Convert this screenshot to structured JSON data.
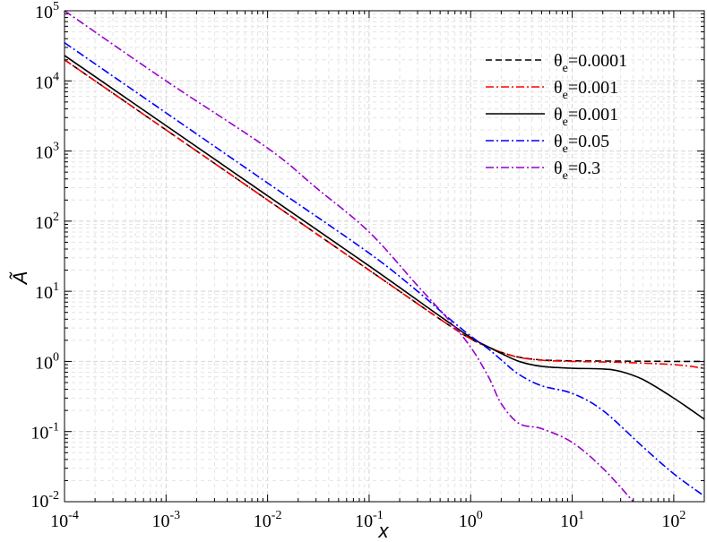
{
  "chart_data": {
    "type": "line",
    "title": "",
    "xlabel": "x",
    "ylabel": "Ã",
    "xscale": "log",
    "yscale": "log",
    "xlim": [
      0.0001,
      200
    ],
    "ylim": [
      0.01,
      100000
    ],
    "grid": true,
    "legend_position": "top-right",
    "x_ticks": [
      {
        "base": "10",
        "exp": "-4"
      },
      {
        "base": "10",
        "exp": "-3"
      },
      {
        "base": "10",
        "exp": "-2"
      },
      {
        "base": "10",
        "exp": "-1"
      },
      {
        "base": "10",
        "exp": "0"
      },
      {
        "base": "10",
        "exp": "1"
      },
      {
        "base": "10",
        "exp": "2"
      }
    ],
    "y_ticks": [
      {
        "base": "10",
        "exp": "-2"
      },
      {
        "base": "10",
        "exp": "-1"
      },
      {
        "base": "10",
        "exp": "0"
      },
      {
        "base": "10",
        "exp": "1"
      },
      {
        "base": "10",
        "exp": "2"
      },
      {
        "base": "10",
        "exp": "3"
      },
      {
        "base": "10",
        "exp": "4"
      },
      {
        "base": "10",
        "exp": "5"
      }
    ],
    "series": [
      {
        "label_main": "θ",
        "label_sub": "e",
        "label_value": "=0.0001",
        "color": "#000000",
        "style": "dashed",
        "x": [
          0.0001,
          0.001,
          0.01,
          0.1,
          0.5,
          1,
          1.5,
          2,
          3,
          5,
          10,
          30,
          100,
          200
        ],
        "y": [
          20000,
          2000,
          200,
          20,
          4.0,
          2.1,
          1.6,
          1.35,
          1.15,
          1.05,
          1.02,
          1.01,
          1.0,
          1.0
        ]
      },
      {
        "label_main": "θ",
        "label_sub": "e",
        "label_value": "=0.001",
        "color": "#ff0000",
        "style": "dashdot",
        "x": [
          0.0001,
          0.001,
          0.01,
          0.1,
          0.5,
          1,
          1.5,
          2,
          3,
          5,
          10,
          30,
          100,
          200
        ],
        "y": [
          20000,
          2000,
          200,
          20,
          4.0,
          2.1,
          1.6,
          1.35,
          1.14,
          1.04,
          1.0,
          0.97,
          0.9,
          0.8
        ]
      },
      {
        "label_main": "θ",
        "label_sub": "e",
        "label_value": "=0.001",
        "color": "#000000",
        "style": "solid",
        "x": [
          0.0001,
          0.001,
          0.01,
          0.1,
          0.5,
          1,
          1.5,
          2,
          3,
          5,
          10,
          20,
          30,
          50,
          100,
          200
        ],
        "y": [
          23000,
          2300,
          230,
          23,
          4.4,
          2.2,
          1.6,
          1.3,
          1.0,
          0.85,
          0.8,
          0.78,
          0.72,
          0.55,
          0.3,
          0.15
        ]
      },
      {
        "label_main": "θ",
        "label_sub": "e",
        "label_value": "=0.05",
        "color": "#0000ff",
        "style": "dashdot",
        "x": [
          0.0001,
          0.001,
          0.01,
          0.1,
          0.3,
          0.6,
          1,
          1.5,
          2,
          3,
          5,
          10,
          20,
          50,
          100,
          200
        ],
        "y": [
          35000,
          3500,
          350,
          35,
          10,
          4.2,
          2.3,
          1.5,
          1.05,
          0.65,
          0.45,
          0.35,
          0.2,
          0.06,
          0.025,
          0.012
        ]
      },
      {
        "label_main": "θ",
        "label_sub": "e",
        "label_value": "=0.3",
        "color": "#9900cc",
        "style": "dashdot",
        "x": [
          0.0001,
          0.001,
          0.01,
          0.03,
          0.1,
          0.3,
          0.6,
          1,
          1.5,
          2,
          3,
          5,
          10,
          20,
          40
        ],
        "y": [
          100000,
          10000,
          1100,
          300,
          70,
          12,
          4.0,
          1.6,
          0.6,
          0.25,
          0.13,
          0.11,
          0.07,
          0.03,
          0.01
        ]
      }
    ]
  }
}
